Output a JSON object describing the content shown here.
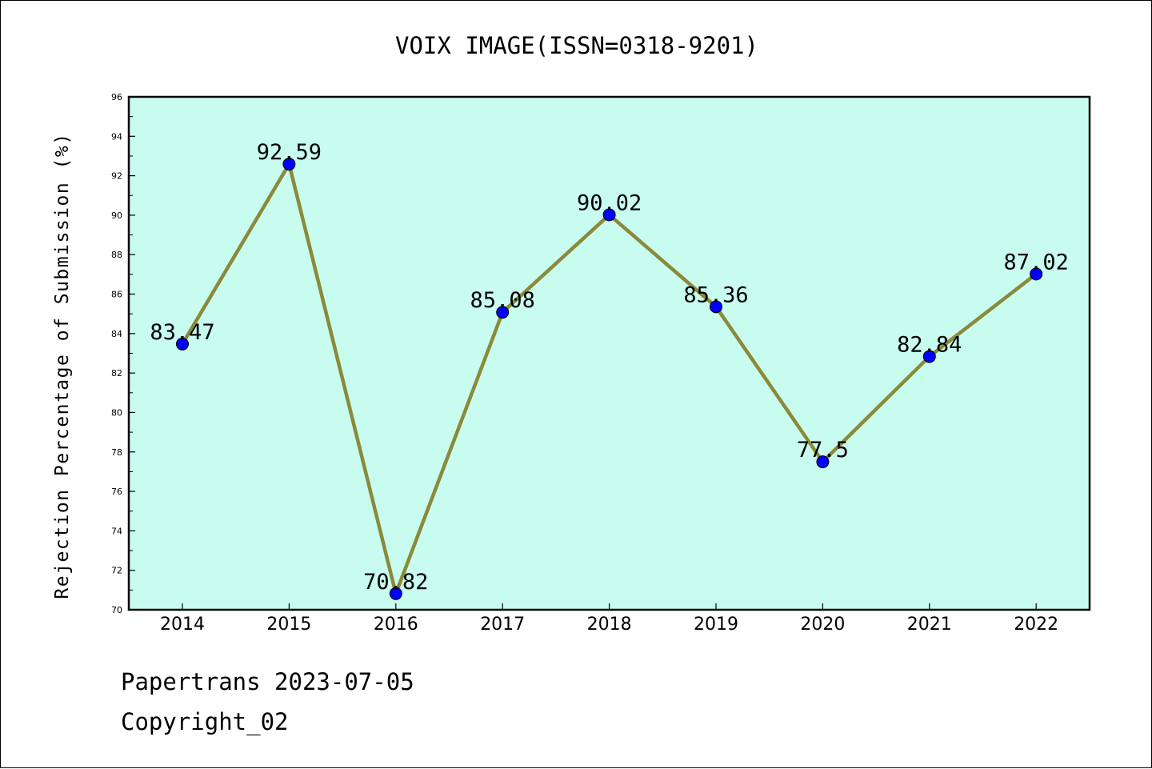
{
  "chart_data": {
    "type": "line",
    "title": "VOIX IMAGE(ISSN=0318-9201)",
    "xlabel": "",
    "ylabel": "Rejection Percentage of Submission (%)",
    "categories": [
      "2014",
      "2015",
      "2016",
      "2017",
      "2018",
      "2019",
      "2020",
      "2021",
      "2022"
    ],
    "values": [
      83.47,
      92.59,
      70.82,
      85.08,
      90.02,
      85.36,
      77.5,
      82.84,
      87.02
    ],
    "data_labels": [
      "83.47",
      "92.59",
      "70.82",
      "85.08",
      "90.02",
      "85.36",
      "77.5",
      "82.84",
      "87.02"
    ],
    "ylim": [
      70,
      96
    ],
    "yticks": [
      70,
      72,
      74,
      76,
      78,
      80,
      82,
      84,
      86,
      88,
      90,
      92,
      94,
      96
    ],
    "grid": false,
    "colors": {
      "plot_background": "#c8fcef",
      "line": "#8b8a3a",
      "marker": "#0000ff",
      "text": "#000000"
    }
  },
  "footer": {
    "source": "Papertrans 2023-07-05",
    "copyright": "Copyright_02"
  }
}
